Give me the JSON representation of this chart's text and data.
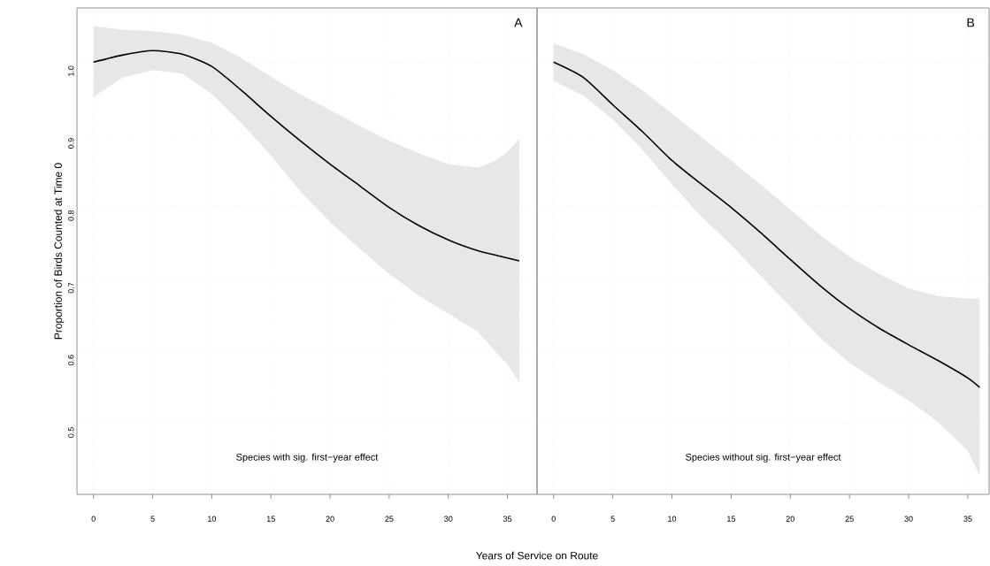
{
  "chart_data": [
    {
      "type": "line",
      "ylabel": "Proportion of Birds Counted at Time 0",
      "xlabel": "Years of Service on Route",
      "annotations": [
        "A",
        "Species with sig. first−year effect"
      ],
      "x": [
        0,
        2.5,
        5,
        7.5,
        10,
        12.5,
        15,
        17.5,
        20,
        22.5,
        25,
        27.5,
        30,
        32.5,
        34,
        35,
        36
      ],
      "series": [
        {
          "color": "#000000",
          "values": [
            1.0,
            1.01,
            1.016,
            1.011,
            0.994,
            0.961,
            0.925,
            0.891,
            0.859,
            0.829,
            0.799,
            0.774,
            0.754,
            0.739,
            0.733,
            0.729,
            0.725
          ],
          "upper": [
            1.05,
            1.045,
            1.043,
            1.038,
            1.027,
            1.006,
            0.98,
            0.955,
            0.934,
            0.912,
            0.891,
            0.874,
            0.859,
            0.854,
            0.864,
            0.876,
            0.894
          ],
          "lower": [
            0.952,
            0.979,
            0.989,
            0.984,
            0.956,
            0.916,
            0.871,
            0.821,
            0.779,
            0.742,
            0.707,
            0.677,
            0.652,
            0.627,
            0.599,
            0.582,
            0.557
          ]
        }
      ],
      "xlim": [
        -1.4,
        37.5
      ],
      "ylim": [
        0.402,
        1.075
      ],
      "xticks": [
        0,
        5,
        10,
        15,
        20,
        25,
        30,
        35
      ],
      "yticks": [
        0.5,
        0.6,
        0.7,
        0.8,
        0.9,
        {
          "value": 1.0,
          "label": "1.0"
        }
      ],
      "grid": true,
      "line_style": "solid",
      "marker": "none"
    },
    {
      "type": "line",
      "annotations": [
        "B",
        "Species without sig. first−year effect"
      ],
      "x": [
        0,
        2.5,
        5,
        7.5,
        10,
        12.5,
        15,
        17.5,
        20,
        22.5,
        25,
        27.5,
        30,
        32.5,
        35,
        36
      ],
      "series": [
        {
          "color": "#000000",
          "values": [
            1.0,
            0.979,
            0.941,
            0.904,
            0.864,
            0.831,
            0.799,
            0.764,
            0.727,
            0.691,
            0.659,
            0.632,
            0.609,
            0.587,
            0.563,
            0.55
          ],
          "upper": [
            1.026,
            1.011,
            0.989,
            0.961,
            0.929,
            0.896,
            0.864,
            0.831,
            0.796,
            0.761,
            0.731,
            0.707,
            0.687,
            0.676,
            0.673,
            0.673
          ],
          "lower": [
            0.974,
            0.954,
            0.921,
            0.879,
            0.831,
            0.786,
            0.747,
            0.704,
            0.662,
            0.619,
            0.584,
            0.557,
            0.532,
            0.502,
            0.462,
            0.428
          ]
        }
      ],
      "xlim": [
        -1.4,
        36.8
      ],
      "ylim": [
        0.402,
        1.075
      ],
      "xticks": [
        0,
        5,
        10,
        15,
        20,
        25,
        30,
        35
      ],
      "yticks": [
        0.5,
        0.6,
        0.7,
        0.8,
        0.9,
        {
          "value": 1.0,
          "label": null
        }
      ],
      "grid": true,
      "tick_labels": "x",
      "line_style": "solid",
      "marker": "none"
    }
  ]
}
